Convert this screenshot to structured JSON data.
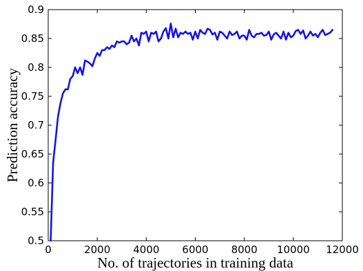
{
  "chart_data": {
    "type": "line",
    "title": "",
    "xlabel": "No. of trajectories in training data",
    "ylabel": "Prediction accuracy",
    "xlim": [
      0,
      12000
    ],
    "ylim": [
      0.5,
      0.9
    ],
    "xticks": [
      0,
      2000,
      4000,
      6000,
      8000,
      10000,
      12000
    ],
    "yticks": [
      0.5,
      0.55,
      0.6,
      0.65,
      0.7,
      0.75,
      0.8,
      0.85,
      0.9
    ],
    "grid": false,
    "legend": "none",
    "series": [
      {
        "color": "#1414e6",
        "x": [
          100,
          200,
          300,
          400,
          500,
          600,
          700,
          800,
          900,
          1000,
          1100,
          1200,
          1300,
          1400,
          1500,
          1600,
          1700,
          1800,
          1900,
          2000,
          2100,
          2200,
          2300,
          2400,
          2500,
          2600,
          2700,
          2800,
          2900,
          3000,
          3100,
          3200,
          3300,
          3400,
          3500,
          3600,
          3700,
          3800,
          3900,
          4000,
          4100,
          4200,
          4300,
          4400,
          4500,
          4600,
          4700,
          4800,
          4900,
          5000,
          5100,
          5200,
          5300,
          5400,
          5500,
          5600,
          5700,
          5800,
          5900,
          6000,
          6100,
          6200,
          6300,
          6400,
          6500,
          6600,
          6700,
          6800,
          6900,
          7000,
          7100,
          7200,
          7300,
          7400,
          7500,
          7600,
          7700,
          7800,
          7900,
          8000,
          8100,
          8200,
          8300,
          8400,
          8500,
          8600,
          8700,
          8800,
          8900,
          9000,
          9100,
          9200,
          9300,
          9400,
          9500,
          9600,
          9700,
          9800,
          9900,
          10000,
          10100,
          10200,
          10300,
          10400,
          10500,
          10600,
          10700,
          10800,
          10900,
          11000,
          11100,
          11200,
          11300,
          11400,
          11500,
          11600
        ],
        "y": [
          0.5,
          0.635,
          0.675,
          0.715,
          0.738,
          0.755,
          0.762,
          0.762,
          0.78,
          0.785,
          0.8,
          0.79,
          0.8,
          0.787,
          0.812,
          0.81,
          0.807,
          0.802,
          0.815,
          0.825,
          0.82,
          0.83,
          0.83,
          0.835,
          0.832,
          0.838,
          0.835,
          0.845,
          0.843,
          0.845,
          0.845,
          0.84,
          0.843,
          0.855,
          0.845,
          0.85,
          0.838,
          0.86,
          0.858,
          0.862,
          0.845,
          0.86,
          0.858,
          0.862,
          0.845,
          0.85,
          0.862,
          0.868,
          0.85,
          0.876,
          0.852,
          0.867,
          0.852,
          0.86,
          0.858,
          0.862,
          0.858,
          0.86,
          0.848,
          0.862,
          0.85,
          0.865,
          0.86,
          0.858,
          0.867,
          0.865,
          0.857,
          0.86,
          0.848,
          0.862,
          0.86,
          0.855,
          0.85,
          0.862,
          0.856,
          0.858,
          0.862,
          0.85,
          0.855,
          0.855,
          0.848,
          0.865,
          0.855,
          0.852,
          0.858,
          0.858,
          0.86,
          0.855,
          0.856,
          0.862,
          0.848,
          0.857,
          0.86,
          0.855,
          0.85,
          0.862,
          0.848,
          0.86,
          0.852,
          0.855,
          0.863,
          0.865,
          0.858,
          0.864,
          0.85,
          0.855,
          0.862,
          0.855,
          0.858,
          0.852,
          0.86,
          0.865,
          0.856,
          0.858,
          0.86,
          0.865
        ]
      }
    ]
  }
}
